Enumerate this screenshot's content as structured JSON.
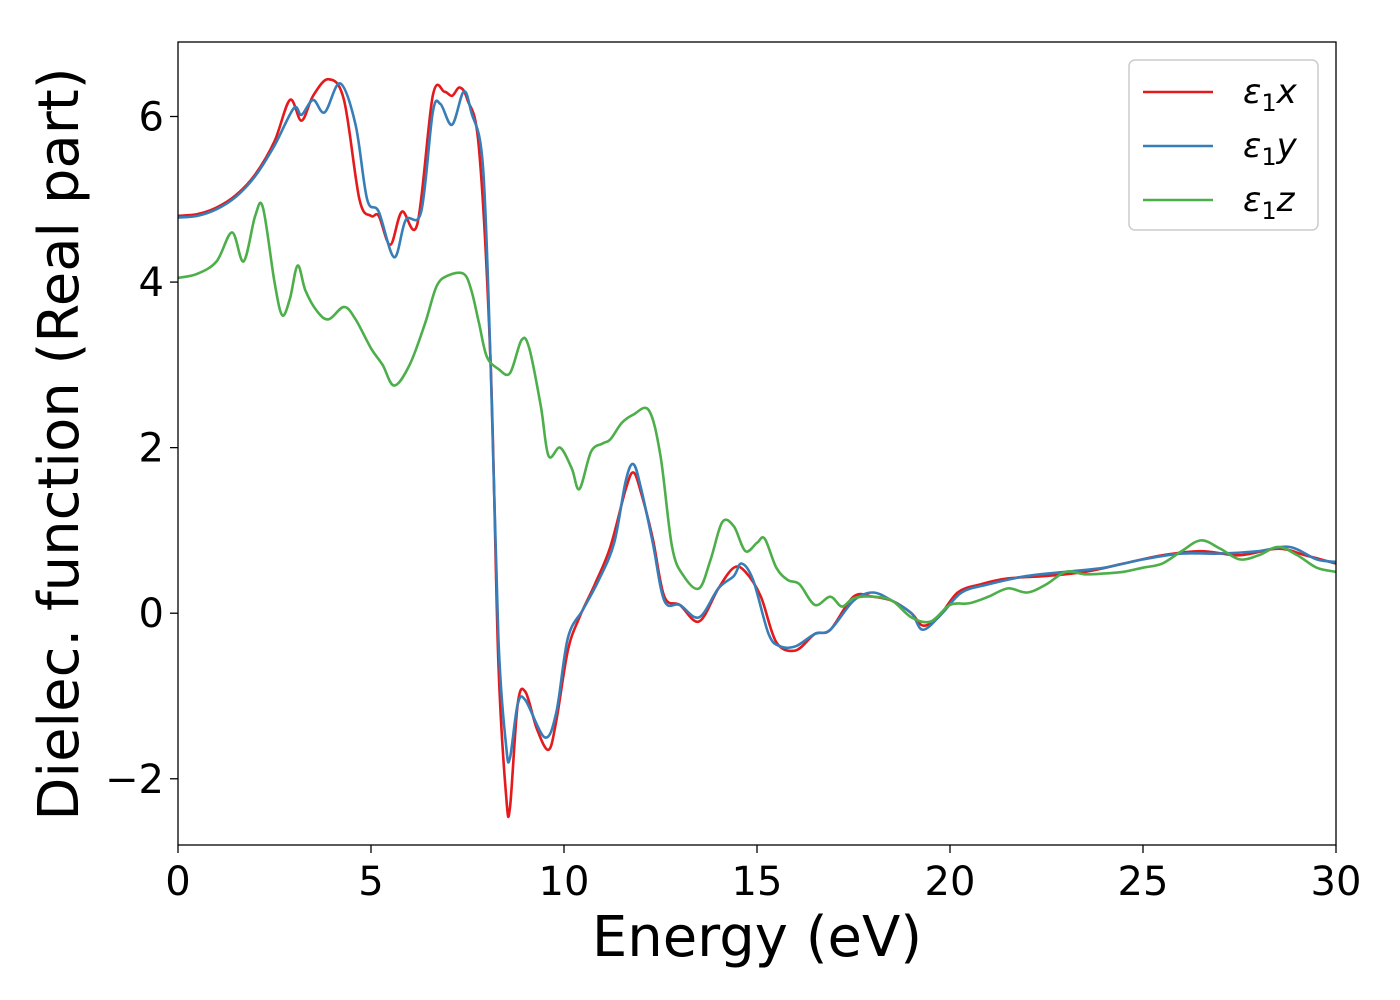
{
  "chart_data": {
    "type": "line",
    "title": "",
    "xlabel": "Energy (eV)",
    "ylabel": "Dielec. function (Real part)",
    "xlim": [
      0,
      30
    ],
    "ylim": [
      -2.8,
      6.9
    ],
    "x_ticks": [
      0,
      5,
      10,
      15,
      20,
      25,
      30
    ],
    "x_tick_labels": [
      "0",
      "5",
      "10",
      "15",
      "20",
      "25",
      "30"
    ],
    "y_ticks": [
      -2,
      0,
      2,
      4,
      6
    ],
    "y_tick_labels": [
      "−2",
      "0",
      "2",
      "4",
      "6"
    ],
    "grid": false,
    "legend_position": "top-right",
    "series": [
      {
        "name": "ε₁x",
        "legend_symbol": "ε",
        "legend_sub": "1",
        "legend_var": "x",
        "color": "#e41a1c",
        "points": [
          [
            0,
            4.8
          ],
          [
            0.5,
            4.82
          ],
          [
            1,
            4.9
          ],
          [
            1.5,
            5.05
          ],
          [
            2,
            5.3
          ],
          [
            2.5,
            5.7
          ],
          [
            2.9,
            6.2
          ],
          [
            3.2,
            5.95
          ],
          [
            3.5,
            6.25
          ],
          [
            3.9,
            6.45
          ],
          [
            4.3,
            6.2
          ],
          [
            4.7,
            5.0
          ],
          [
            5.0,
            4.8
          ],
          [
            5.2,
            4.8
          ],
          [
            5.5,
            4.45
          ],
          [
            5.8,
            4.85
          ],
          [
            6.2,
            4.7
          ],
          [
            6.6,
            6.25
          ],
          [
            6.9,
            6.3
          ],
          [
            7.1,
            6.25
          ],
          [
            7.3,
            6.35
          ],
          [
            7.5,
            6.2
          ],
          [
            7.8,
            5.6
          ],
          [
            8.1,
            3.0
          ],
          [
            8.3,
            -0.6
          ],
          [
            8.5,
            -2.2
          ],
          [
            8.6,
            -2.35
          ],
          [
            8.8,
            -1.1
          ],
          [
            9.0,
            -0.95
          ],
          [
            9.3,
            -1.4
          ],
          [
            9.6,
            -1.65
          ],
          [
            9.8,
            -1.3
          ],
          [
            10.1,
            -0.45
          ],
          [
            10.4,
            -0.05
          ],
          [
            10.8,
            0.35
          ],
          [
            11.2,
            0.8
          ],
          [
            11.6,
            1.5
          ],
          [
            11.8,
            1.7
          ],
          [
            12.0,
            1.45
          ],
          [
            12.3,
            0.9
          ],
          [
            12.6,
            0.2
          ],
          [
            13.0,
            0.1
          ],
          [
            13.5,
            -0.1
          ],
          [
            14.0,
            0.3
          ],
          [
            14.4,
            0.55
          ],
          [
            14.7,
            0.5
          ],
          [
            15.1,
            0.2
          ],
          [
            15.5,
            -0.35
          ],
          [
            16.0,
            -0.45
          ],
          [
            16.5,
            -0.25
          ],
          [
            16.9,
            -0.2
          ],
          [
            17.5,
            0.2
          ],
          [
            18.0,
            0.2
          ],
          [
            18.5,
            0.15
          ],
          [
            19.0,
            0.0
          ],
          [
            19.3,
            -0.15
          ],
          [
            19.7,
            -0.05
          ],
          [
            20.2,
            0.25
          ],
          [
            20.8,
            0.35
          ],
          [
            21.5,
            0.42
          ],
          [
            22.5,
            0.45
          ],
          [
            23.5,
            0.5
          ],
          [
            24.5,
            0.6
          ],
          [
            25.5,
            0.7
          ],
          [
            26.5,
            0.75
          ],
          [
            27.5,
            0.7
          ],
          [
            28.5,
            0.78
          ],
          [
            29.2,
            0.7
          ],
          [
            30,
            0.6
          ]
        ]
      },
      {
        "name": "ε₁y",
        "legend_symbol": "ε",
        "legend_sub": "1",
        "legend_var": "y",
        "color": "#377eb8",
        "points": [
          [
            0,
            4.78
          ],
          [
            0.5,
            4.8
          ],
          [
            1,
            4.88
          ],
          [
            1.5,
            5.03
          ],
          [
            2,
            5.28
          ],
          [
            2.5,
            5.65
          ],
          [
            3.0,
            6.1
          ],
          [
            3.2,
            6.02
          ],
          [
            3.5,
            6.2
          ],
          [
            3.8,
            6.05
          ],
          [
            4.2,
            6.4
          ],
          [
            4.6,
            5.9
          ],
          [
            4.9,
            5.0
          ],
          [
            5.2,
            4.85
          ],
          [
            5.6,
            4.3
          ],
          [
            5.9,
            4.75
          ],
          [
            6.3,
            4.85
          ],
          [
            6.6,
            6.05
          ],
          [
            6.8,
            6.15
          ],
          [
            7.1,
            5.9
          ],
          [
            7.4,
            6.3
          ],
          [
            7.6,
            6.05
          ],
          [
            7.9,
            5.4
          ],
          [
            8.1,
            3.0
          ],
          [
            8.3,
            -0.3
          ],
          [
            8.5,
            -1.6
          ],
          [
            8.6,
            -1.75
          ],
          [
            8.8,
            -1.1
          ],
          [
            9.0,
            -1.05
          ],
          [
            9.5,
            -1.5
          ],
          [
            9.8,
            -1.2
          ],
          [
            10.1,
            -0.3
          ],
          [
            10.5,
            0.05
          ],
          [
            10.9,
            0.4
          ],
          [
            11.3,
            0.85
          ],
          [
            11.6,
            1.6
          ],
          [
            11.8,
            1.8
          ],
          [
            12.0,
            1.5
          ],
          [
            12.3,
            0.85
          ],
          [
            12.6,
            0.15
          ],
          [
            13.0,
            0.1
          ],
          [
            13.5,
            -0.05
          ],
          [
            14.0,
            0.3
          ],
          [
            14.4,
            0.45
          ],
          [
            14.6,
            0.6
          ],
          [
            14.9,
            0.4
          ],
          [
            15.3,
            -0.25
          ],
          [
            15.6,
            -0.4
          ],
          [
            16.0,
            -0.4
          ],
          [
            16.5,
            -0.25
          ],
          [
            16.9,
            -0.2
          ],
          [
            17.5,
            0.15
          ],
          [
            18.0,
            0.25
          ],
          [
            18.5,
            0.15
          ],
          [
            19.0,
            0.0
          ],
          [
            19.3,
            -0.2
          ],
          [
            19.8,
            0.0
          ],
          [
            20.3,
            0.25
          ],
          [
            21,
            0.35
          ],
          [
            22,
            0.45
          ],
          [
            23,
            0.5
          ],
          [
            24,
            0.55
          ],
          [
            25,
            0.65
          ],
          [
            26,
            0.72
          ],
          [
            27,
            0.72
          ],
          [
            28,
            0.75
          ],
          [
            28.8,
            0.8
          ],
          [
            29.5,
            0.65
          ],
          [
            30,
            0.62
          ]
        ]
      },
      {
        "name": "ε₁z",
        "legend_symbol": "ε",
        "legend_sub": "1",
        "legend_var": "z",
        "color": "#4daf4a",
        "points": [
          [
            0,
            4.05
          ],
          [
            0.5,
            4.1
          ],
          [
            1.0,
            4.25
          ],
          [
            1.4,
            4.6
          ],
          [
            1.7,
            4.25
          ],
          [
            2.0,
            4.8
          ],
          [
            2.2,
            4.9
          ],
          [
            2.5,
            4.0
          ],
          [
            2.7,
            3.6
          ],
          [
            2.9,
            3.8
          ],
          [
            3.1,
            4.2
          ],
          [
            3.3,
            3.9
          ],
          [
            3.6,
            3.65
          ],
          [
            3.9,
            3.55
          ],
          [
            4.3,
            3.7
          ],
          [
            4.6,
            3.55
          ],
          [
            5.0,
            3.2
          ],
          [
            5.3,
            3.0
          ],
          [
            5.6,
            2.75
          ],
          [
            6.0,
            3.0
          ],
          [
            6.4,
            3.5
          ],
          [
            6.7,
            3.95
          ],
          [
            7.0,
            4.08
          ],
          [
            7.4,
            4.1
          ],
          [
            7.6,
            3.9
          ],
          [
            7.8,
            3.5
          ],
          [
            8.0,
            3.1
          ],
          [
            8.3,
            2.95
          ],
          [
            8.6,
            2.9
          ],
          [
            8.9,
            3.3
          ],
          [
            9.1,
            3.2
          ],
          [
            9.4,
            2.5
          ],
          [
            9.6,
            1.9
          ],
          [
            9.9,
            2.0
          ],
          [
            10.2,
            1.75
          ],
          [
            10.4,
            1.5
          ],
          [
            10.7,
            1.95
          ],
          [
            11.0,
            2.05
          ],
          [
            11.2,
            2.1
          ],
          [
            11.5,
            2.3
          ],
          [
            11.8,
            2.4
          ],
          [
            12.2,
            2.45
          ],
          [
            12.5,
            1.9
          ],
          [
            12.8,
            0.8
          ],
          [
            13.1,
            0.45
          ],
          [
            13.5,
            0.3
          ],
          [
            13.8,
            0.65
          ],
          [
            14.1,
            1.1
          ],
          [
            14.4,
            1.05
          ],
          [
            14.7,
            0.75
          ],
          [
            15.0,
            0.85
          ],
          [
            15.2,
            0.9
          ],
          [
            15.5,
            0.55
          ],
          [
            15.8,
            0.4
          ],
          [
            16.1,
            0.35
          ],
          [
            16.5,
            0.1
          ],
          [
            16.9,
            0.2
          ],
          [
            17.2,
            0.08
          ],
          [
            17.5,
            0.18
          ],
          [
            18.0,
            0.2
          ],
          [
            18.5,
            0.15
          ],
          [
            19.0,
            -0.05
          ],
          [
            19.5,
            -0.1
          ],
          [
            20.0,
            0.1
          ],
          [
            20.5,
            0.12
          ],
          [
            21.0,
            0.2
          ],
          [
            21.5,
            0.3
          ],
          [
            22.0,
            0.25
          ],
          [
            22.5,
            0.35
          ],
          [
            23.0,
            0.5
          ],
          [
            23.5,
            0.47
          ],
          [
            24.0,
            0.48
          ],
          [
            24.5,
            0.5
          ],
          [
            25,
            0.55
          ],
          [
            25.5,
            0.6
          ],
          [
            26.0,
            0.75
          ],
          [
            26.5,
            0.88
          ],
          [
            27.0,
            0.78
          ],
          [
            27.5,
            0.65
          ],
          [
            28.0,
            0.7
          ],
          [
            28.5,
            0.8
          ],
          [
            29.0,
            0.7
          ],
          [
            29.5,
            0.55
          ],
          [
            30,
            0.5
          ]
        ]
      }
    ]
  }
}
